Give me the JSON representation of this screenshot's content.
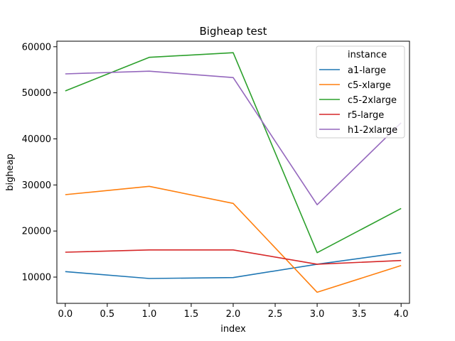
{
  "chart_data": {
    "type": "line",
    "title": "Bigheap test",
    "xlabel": "index",
    "ylabel": "bigheap",
    "x": [
      0,
      1,
      2,
      3,
      4
    ],
    "xlim": [
      -0.1,
      4.1
    ],
    "ylim": [
      4300,
      61200
    ],
    "xticks": [
      0.0,
      0.5,
      1.0,
      1.5,
      2.0,
      2.5,
      3.0,
      3.5,
      4.0
    ],
    "xtick_labels": [
      "0.0",
      "0.5",
      "1.0",
      "1.5",
      "2.0",
      "2.5",
      "3.0",
      "3.5",
      "4.0"
    ],
    "yticks": [
      10000,
      20000,
      30000,
      40000,
      50000,
      60000
    ],
    "ytick_labels": [
      "10000",
      "20000",
      "30000",
      "40000",
      "50000",
      "60000"
    ],
    "grid": false,
    "legend": {
      "title": "instance",
      "placement": "top-right"
    },
    "series": [
      {
        "name": "a1-large",
        "color": "#1f77b4",
        "values": [
          11200,
          9700,
          9900,
          12800,
          15300
        ]
      },
      {
        "name": "c5-xlarge",
        "color": "#ff7f0e",
        "values": [
          27900,
          29700,
          26000,
          6700,
          12500
        ]
      },
      {
        "name": "c5-2xlarge",
        "color": "#2ca02c",
        "values": [
          50400,
          57700,
          58700,
          15300,
          24900
        ]
      },
      {
        "name": "r5-large",
        "color": "#d62728",
        "values": [
          15400,
          15900,
          15900,
          12800,
          13600
        ]
      },
      {
        "name": "h1-2xlarge",
        "color": "#9467bd",
        "values": [
          54100,
          54700,
          53300,
          25700,
          43500
        ]
      }
    ]
  }
}
